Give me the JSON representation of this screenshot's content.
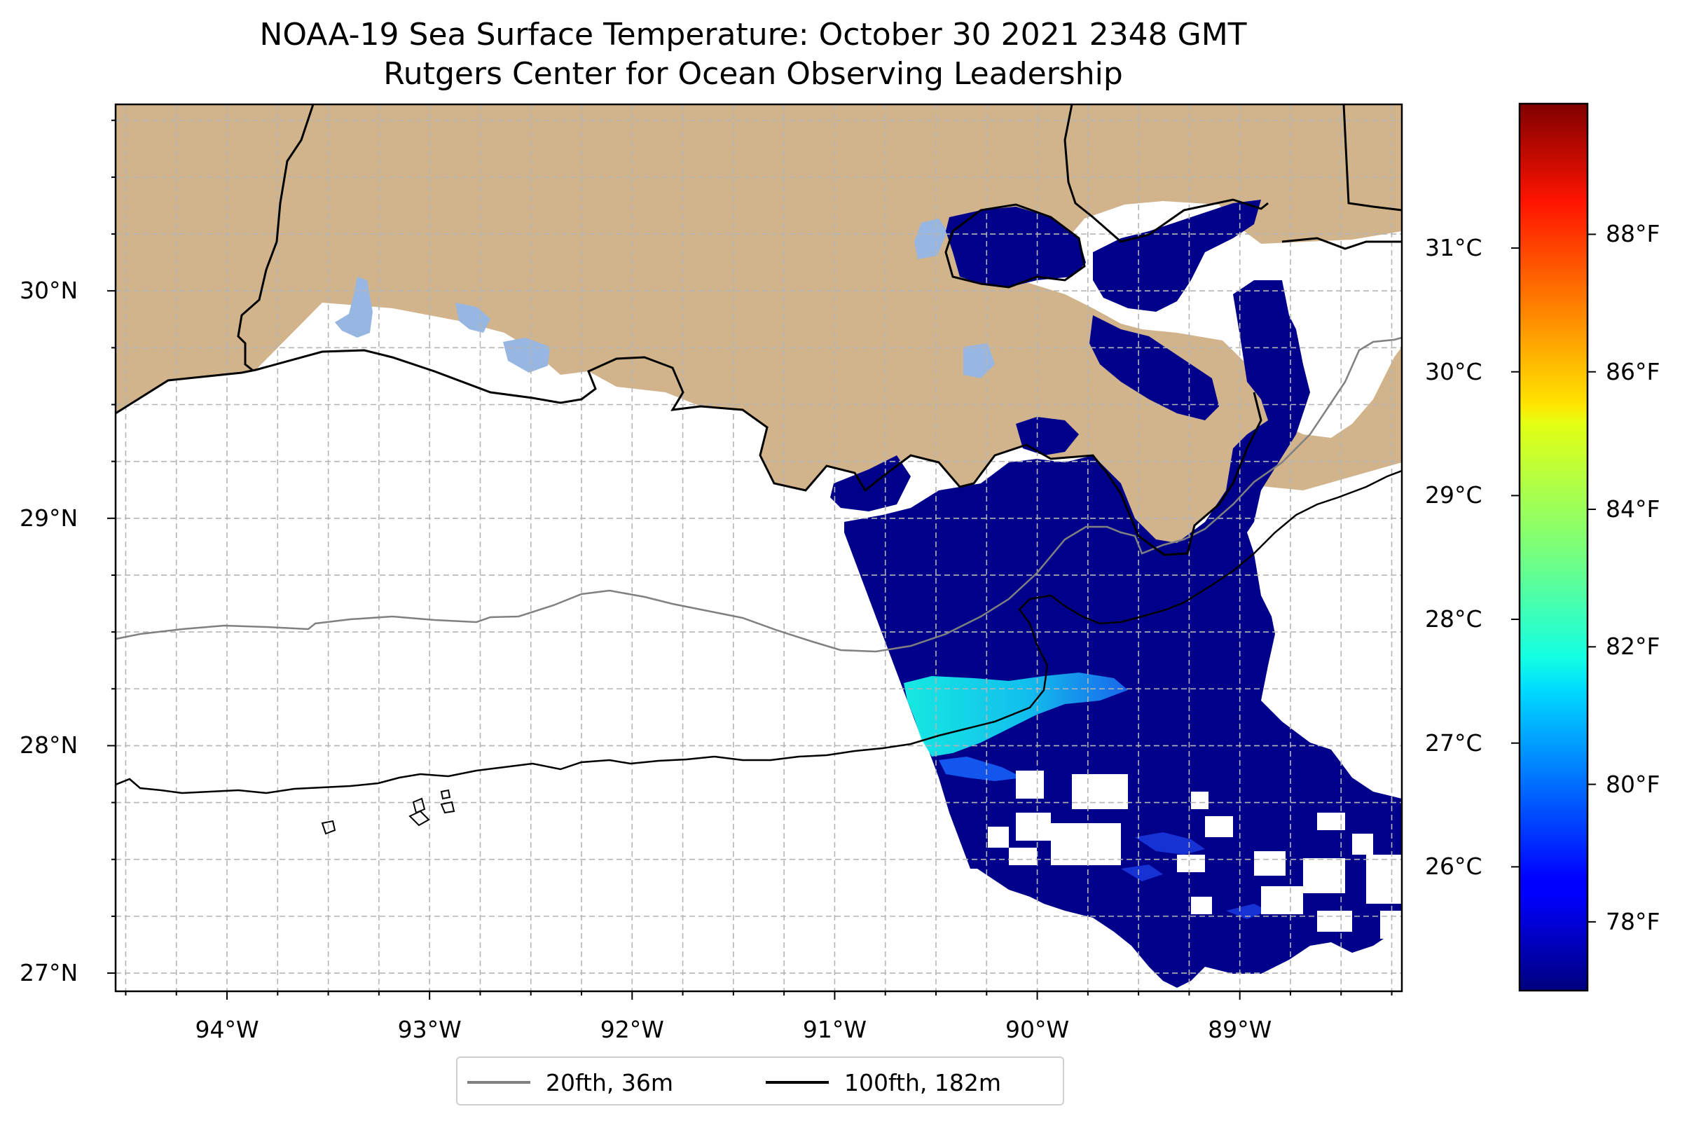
{
  "title": "NOAA-19 Sea Surface Temperature: October 30 2021 2348 GMT",
  "subtitle": "Rutgers Center for Ocean Observing Leadership",
  "map": {
    "extent": {
      "lon_min": -94.55,
      "lon_max": -88.2,
      "lat_min": 26.92,
      "lat_max": 30.82
    },
    "lon_ticks": [
      {
        "value": -94,
        "label": "94°W"
      },
      {
        "value": -93,
        "label": "93°W"
      },
      {
        "value": -92,
        "label": "92°W"
      },
      {
        "value": -91,
        "label": "91°W"
      },
      {
        "value": -90,
        "label": "90°W"
      },
      {
        "value": -89,
        "label": "89°W"
      }
    ],
    "lat_ticks": [
      {
        "value": 30,
        "label": "30°N"
      },
      {
        "value": 29,
        "label": "29°N"
      },
      {
        "value": 28,
        "label": "28°N"
      },
      {
        "value": 27,
        "label": "27°N"
      }
    ],
    "gridlines": true,
    "land_color": "#d2b48c",
    "lake_color": "#97b6e1",
    "ocean_color": "#ffffff"
  },
  "colorbar": {
    "colormap": "jet",
    "celsius_ticks": [
      {
        "value": 31,
        "label": "31°C"
      },
      {
        "value": 30,
        "label": "30°C"
      },
      {
        "value": 29,
        "label": "29°C"
      },
      {
        "value": 28,
        "label": "28°C"
      },
      {
        "value": 27,
        "label": "27°C"
      },
      {
        "value": 26,
        "label": "26°C"
      }
    ],
    "fahrenheit_ticks": [
      {
        "value": 88,
        "label": "88°F"
      },
      {
        "value": 86,
        "label": "86°F"
      },
      {
        "value": 84,
        "label": "84°F"
      },
      {
        "value": 82,
        "label": "82°F"
      },
      {
        "value": 80,
        "label": "80°F"
      },
      {
        "value": 78,
        "label": "78°F"
      }
    ]
  },
  "legend": {
    "placement": "bottom-center",
    "items": [
      {
        "label": "20fth, 36m",
        "color": "#808080"
      },
      {
        "label": "100fth, 182m",
        "color": "#000000"
      }
    ]
  }
}
